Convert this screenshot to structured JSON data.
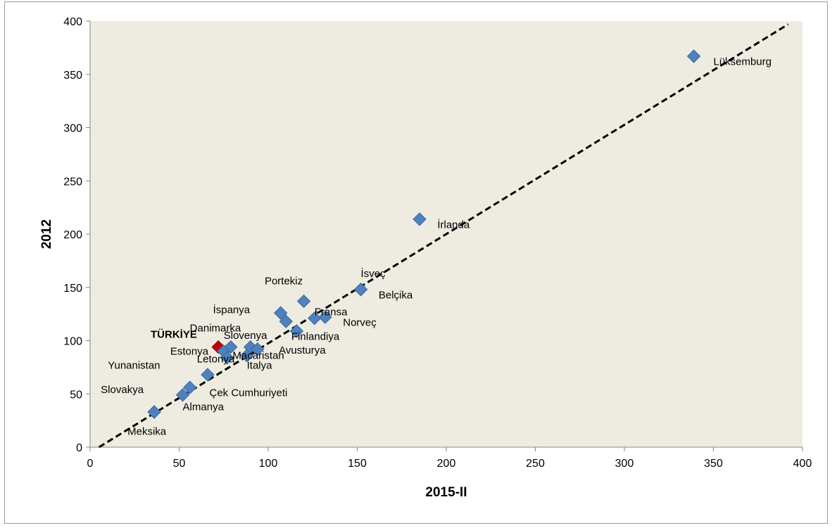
{
  "chart_data": {
    "type": "scatter",
    "title": "",
    "xlabel": "2015-II",
    "ylabel": "2012",
    "xlim": [
      0,
      400
    ],
    "ylim": [
      0,
      400
    ],
    "x_ticks": [
      0,
      50,
      100,
      150,
      200,
      250,
      300,
      350,
      400
    ],
    "y_ticks": [
      0,
      50,
      100,
      150,
      200,
      250,
      300,
      350,
      400
    ],
    "grid": false,
    "legend": "none",
    "plot_background": "#eeece1",
    "point_color": "#4f81bd",
    "highlight_color": "#c0000b",
    "trendline": {
      "style": "dashed",
      "color": "#000000",
      "from": [
        5,
        0
      ],
      "to": [
        392,
        397
      ]
    },
    "points": [
      {
        "x": 339,
        "y": 367,
        "label": "Lüksemburg",
        "lx": 350,
        "ly": 362,
        "bold": false,
        "highlight": false
      },
      {
        "x": 185,
        "y": 214,
        "label": "İrlanda",
        "lx": 195,
        "ly": 209,
        "bold": false,
        "highlight": false
      },
      {
        "x": 152,
        "y": 148,
        "label": "İsveç",
        "lx": 152,
        "ly": 163,
        "bold": false,
        "highlight": false
      },
      {
        "x": 152,
        "y": 148,
        "label": "Belçika",
        "lx": 162,
        "ly": 143,
        "bold": false,
        "highlight": false
      },
      {
        "x": 120,
        "y": 137,
        "label": "Portekiz",
        "lx": 98,
        "ly": 156,
        "bold": false,
        "highlight": false
      },
      {
        "x": 107,
        "y": 126,
        "label": "İspanya",
        "lx": 69,
        "ly": 129,
        "bold": false,
        "highlight": false
      },
      {
        "x": 110,
        "y": 118,
        "label": "Danimarka",
        "lx": 56,
        "ly": 112,
        "bold": false,
        "highlight": false
      },
      {
        "x": 126,
        "y": 121,
        "label": "Fransa",
        "lx": 126,
        "ly": 127,
        "bold": false,
        "highlight": false
      },
      {
        "x": 132,
        "y": 122,
        "label": "Norveç",
        "lx": 142,
        "ly": 117,
        "bold": false,
        "highlight": false
      },
      {
        "x": 116,
        "y": 109,
        "label": "Finlandiya",
        "lx": 113,
        "ly": 104,
        "bold": false,
        "highlight": false
      },
      {
        "x": 72,
        "y": 94,
        "label": "TÜRKİYE",
        "lx": 34,
        "ly": 106,
        "bold": true,
        "highlight": true
      },
      {
        "x": 79,
        "y": 94,
        "label": "Slovenya",
        "lx": 75,
        "ly": 105,
        "bold": false,
        "highlight": false
      },
      {
        "x": 75,
        "y": 90,
        "label": "Estonya",
        "lx": 45,
        "ly": 90,
        "bold": false,
        "highlight": false
      },
      {
        "x": 90,
        "y": 94,
        "label": "Avusturya",
        "lx": 106,
        "ly": 91,
        "bold": false,
        "highlight": false
      },
      {
        "x": 94,
        "y": 92,
        "label": "Macaristan",
        "lx": 80,
        "ly": 86,
        "bold": false,
        "highlight": false
      },
      {
        "x": 77,
        "y": 84,
        "label": "Letonya",
        "lx": 60,
        "ly": 83,
        "bold": false,
        "highlight": false
      },
      {
        "x": 88,
        "y": 86,
        "label": "İtalya",
        "lx": 88,
        "ly": 77,
        "bold": false,
        "highlight": false
      },
      {
        "x": 66,
        "y": 68,
        "label": "Yunanistan",
        "lx": 10,
        "ly": 77,
        "bold": false,
        "highlight": false
      },
      {
        "x": 56,
        "y": 56,
        "label": "Çek Cumhuriyeti",
        "lx": 67,
        "ly": 51,
        "bold": false,
        "highlight": false
      },
      {
        "x": 52,
        "y": 49,
        "label": "Almanya",
        "lx": 52,
        "ly": 38,
        "bold": false,
        "highlight": false
      },
      {
        "x": 36,
        "y": 33,
        "label": "Slovakya",
        "lx": 6,
        "ly": 54,
        "bold": false,
        "highlight": false
      },
      {
        "x": 36,
        "y": 33,
        "label": "Meksika",
        "lx": 21,
        "ly": 15,
        "bold": false,
        "highlight": false
      }
    ]
  }
}
